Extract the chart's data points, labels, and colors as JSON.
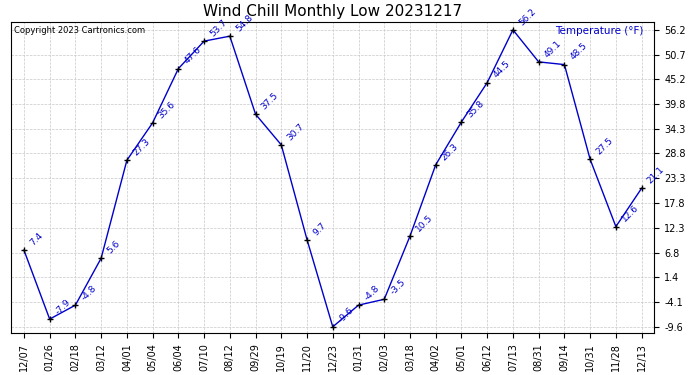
{
  "title": "Wind Chill Monthly Low 20231217",
  "ylabel": "Temperature (°F)",
  "copyright": "Copyright 2023 Cartronics.com",
  "x_labels": [
    "12/07",
    "01/26",
    "02/18",
    "03/12",
    "04/01",
    "05/04",
    "06/04",
    "07/10",
    "08/12",
    "09/29",
    "10/19",
    "11/20",
    "12/23",
    "01/31",
    "02/03",
    "03/18",
    "04/02",
    "05/01",
    "06/12",
    "07/13",
    "08/31",
    "09/14",
    "10/31",
    "11/28",
    "12/13"
  ],
  "y_values": [
    7.4,
    -7.9,
    -4.8,
    5.6,
    27.3,
    35.6,
    47.6,
    53.7,
    54.8,
    37.5,
    30.7,
    9.7,
    -9.6,
    -4.8,
    -3.5,
    10.5,
    26.3,
    35.8,
    44.5,
    56.2,
    49.1,
    48.5,
    27.5,
    12.6,
    21.1
  ],
  "point_labels": [
    "7.4",
    "-7.9",
    "-4.8",
    "5.6",
    "27.3",
    "35.6",
    "47.6",
    "53.7",
    "54.8",
    "37.5",
    "30.7",
    "9.7",
    "-9.6",
    "-4.8",
    "-3.5",
    "10.5",
    "26.3",
    "35.8",
    "44.5",
    "56.2",
    "49.1",
    "48.5",
    "27.5",
    "12.6",
    "21.1"
  ],
  "line_color": "#0000cc",
  "marker_color": "#000000",
  "bg_color": "#ffffff",
  "grid_color": "#c8c8c8",
  "ylim_min": -11.0,
  "ylim_max": 58.0,
  "yticks": [
    -9.6,
    -4.1,
    1.4,
    6.8,
    12.3,
    17.8,
    23.3,
    28.8,
    34.3,
    39.8,
    45.2,
    50.7,
    56.2
  ],
  "title_fontsize": 11,
  "label_fontsize": 6.5,
  "tick_fontsize": 7,
  "annot_fontsize": 6.5
}
